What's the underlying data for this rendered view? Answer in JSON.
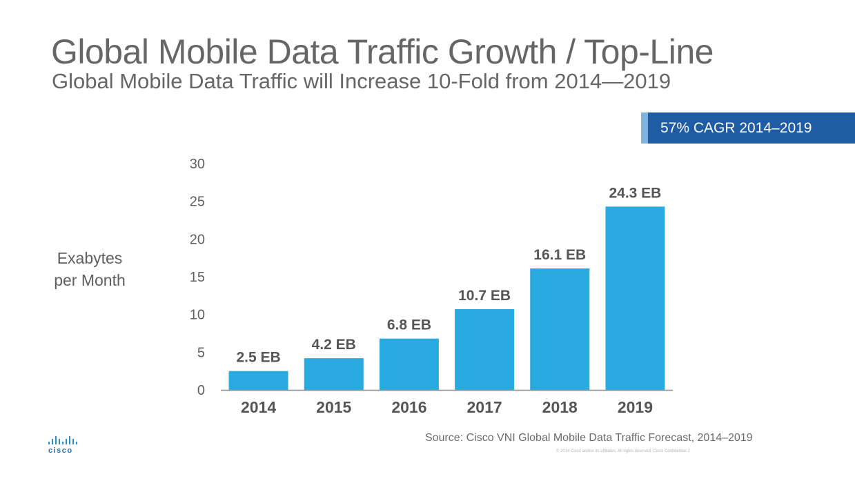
{
  "title": "Global Mobile Data Traffic Growth / Top-Line",
  "subtitle": "Global Mobile Data Traffic will Increase 10-Fold from 2014—2019",
  "badge": "57% CAGR 2014–2019",
  "source": "Source: Cisco VNI  Global Mobile  Data Traffic Forecast, 2014–2019",
  "fineprint": "© 2014   Cisco and/or its affiliates.  All rights reserved.      Cisco Confidential          2",
  "logo_text": "cisco",
  "colors": {
    "bar": "#29abe2",
    "badge": "#1f5ca4",
    "badge_accent": "#7fb3e0",
    "text": "#5f5f5f"
  },
  "chart_data": {
    "type": "bar",
    "categories": [
      "2014",
      "2015",
      "2016",
      "2017",
      "2018",
      "2019"
    ],
    "values": [
      2.5,
      4.2,
      6.8,
      10.7,
      16.1,
      24.3
    ],
    "data_labels": [
      "2.5 EB",
      "4.2 EB",
      "6.8 EB",
      "10.7 EB",
      "16.1 EB",
      "24.3 EB"
    ],
    "ylabel_lines": [
      "Exabytes",
      "per Month"
    ],
    "xlabel": "",
    "ylim": [
      0,
      30
    ],
    "yticks": [
      0,
      5,
      10,
      15,
      20,
      25,
      30
    ],
    "grid": false,
    "legend": "none"
  }
}
